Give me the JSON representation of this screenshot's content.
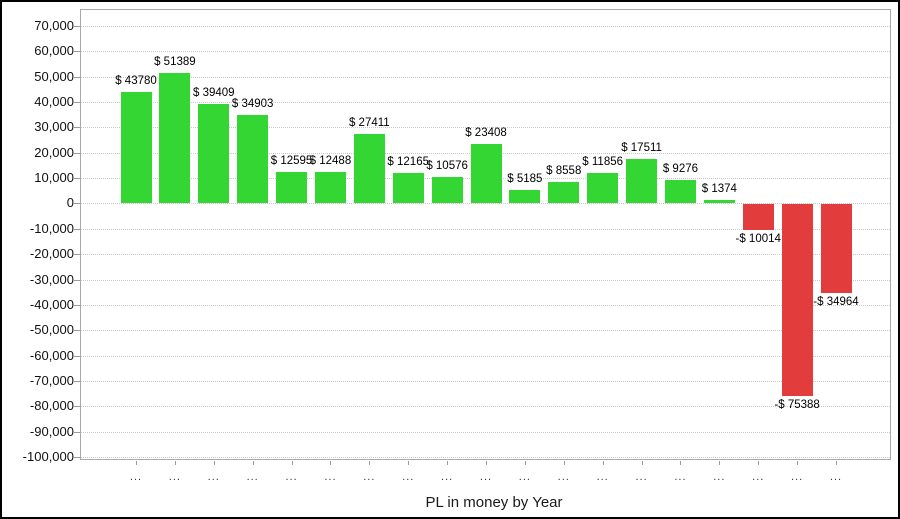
{
  "chart_data": {
    "type": "bar",
    "title": "",
    "xlabel": "PL in money by Year",
    "ylabel": "",
    "ylim": [
      -100000,
      70000
    ],
    "y_tick_step": 10000,
    "grid": true,
    "legend": "none",
    "categories": [
      "...",
      "...",
      "...",
      "...",
      "...",
      "...",
      "...",
      "...",
      "...",
      "...",
      "...",
      "...",
      "...",
      "...",
      "...",
      "...",
      "...",
      "...",
      "..."
    ],
    "values": [
      43780,
      51389,
      39409,
      34903,
      12595,
      12488,
      27411,
      12165,
      10576,
      23408,
      5185,
      8558,
      11856,
      17511,
      9276,
      1374,
      -10014,
      -75388,
      -34964
    ],
    "bar_labels": [
      "$ 43780",
      "$ 51389",
      "$ 39409",
      "$ 34903",
      "$ 12595",
      "$ 12488",
      "$ 27411",
      "$ 12165",
      "$ 10576",
      "$ 23408",
      "$ 5185",
      "$ 8558",
      "$ 11856",
      "$ 17511",
      "$ 9276",
      "$ 1374",
      "-$ 10014",
      "-$ 75388",
      "-$ 34964"
    ],
    "y_tick_labels": [
      "70,000",
      "60,000",
      "50,000",
      "40,000",
      "30,000",
      "20,000",
      "10,000",
      "0",
      "-10,000",
      "-20,000",
      "-30,000",
      "-40,000",
      "-50,000",
      "-60,000",
      "-70,000",
      "-80,000",
      "-90,000",
      "-100,000"
    ],
    "colors": {
      "positive": "#33d633",
      "negative": "#e23c3c"
    }
  }
}
